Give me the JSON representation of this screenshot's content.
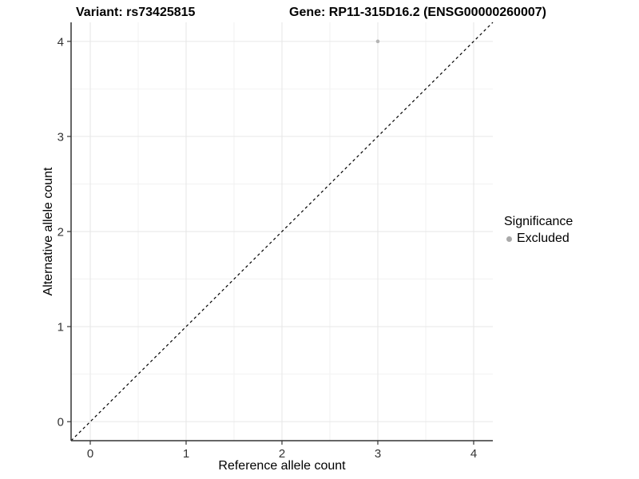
{
  "titles": {
    "left": "Variant: rs73425815",
    "right": "Gene: RP11-315D16.2 (ENSG00000260007)"
  },
  "legend": {
    "title": "Significance",
    "items": [
      {
        "label": "Excluded",
        "color": "#a9a9a9"
      }
    ]
  },
  "chart_data": {
    "type": "scatter",
    "title_left": "Variant: rs73425815",
    "title_right": "Gene: RP11-315D16.2 (ENSG00000260007)",
    "xlabel": "Reference allele count",
    "ylabel": "Alternative allele count",
    "xlim": [
      -0.2,
      4.2
    ],
    "ylim": [
      -0.2,
      4.2
    ],
    "xticks": [
      0,
      1,
      2,
      3,
      4
    ],
    "yticks": [
      0,
      1,
      2,
      3,
      4
    ],
    "minor_gridlines": [
      0.5,
      1.5,
      2.5,
      3.5
    ],
    "grid": true,
    "legend_position": "right",
    "series": [
      {
        "name": "Excluded",
        "color": "#b5b5b5",
        "points": [
          {
            "x": 3,
            "y": 4
          }
        ]
      }
    ],
    "identity_line": {
      "equation": "y = x",
      "style": "dashed",
      "color": "#000000"
    },
    "colors": {
      "grid_major": "#e6e6e6",
      "grid_minor": "#f2f2f2",
      "axis_line": "#333333",
      "tick": "#333333",
      "tick_label": "#333333"
    }
  }
}
